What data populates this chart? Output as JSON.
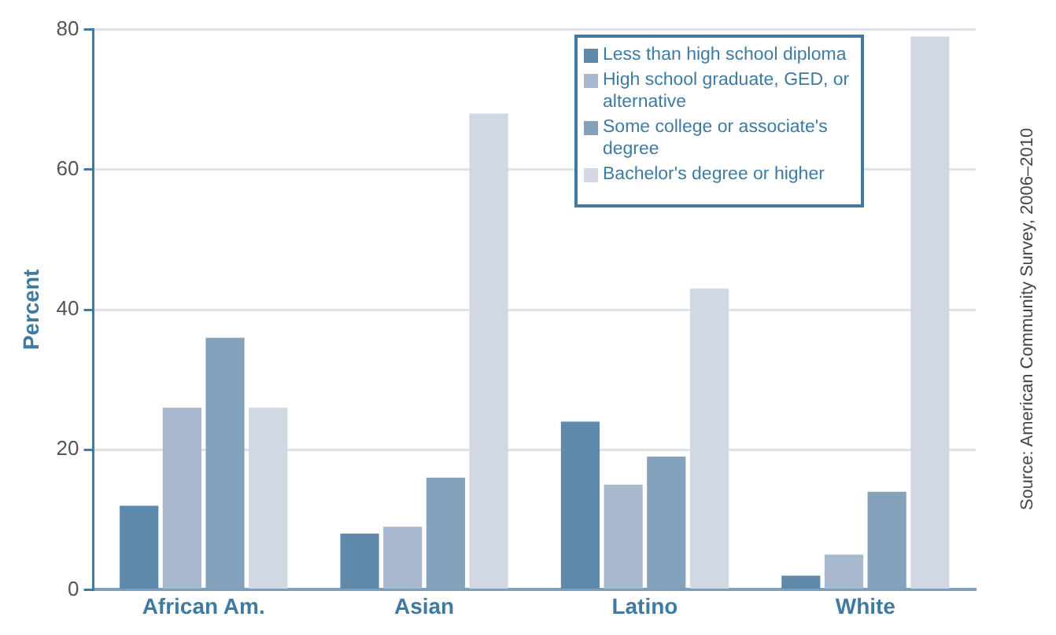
{
  "chart_data": {
    "type": "bar",
    "ylabel": "Percent",
    "categories": [
      "African Am.",
      "Asian",
      "Latino",
      "White"
    ],
    "series": [
      {
        "name": "Less than high school diploma",
        "color": "#5f8aab",
        "values": [
          12,
          8,
          24,
          2
        ]
      },
      {
        "name": "High school graduate, GED, or alternative",
        "color": "#a8b9cf",
        "values": [
          26,
          9,
          15,
          5
        ]
      },
      {
        "name": "Some college or associate's degree",
        "color": "#84a2bc",
        "values": [
          36,
          16,
          19,
          14
        ]
      },
      {
        "name": "Bachelor's degree or higher",
        "color": "#d0d8e3",
        "values": [
          26,
          68,
          43,
          79
        ]
      }
    ],
    "ylim": [
      0,
      80
    ],
    "yticks": [
      0,
      20,
      40,
      60,
      80
    ],
    "grid": "y",
    "legend": "top right",
    "annotations": [
      "Source: American Community Survey, 2006–2010"
    ]
  }
}
